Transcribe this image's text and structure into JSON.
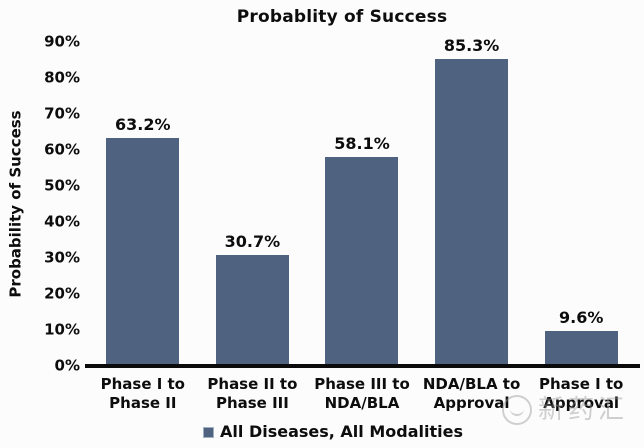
{
  "header": {
    "title": "Probablity of Success"
  },
  "chart_data": {
    "type": "bar",
    "title": "Probablity of Success",
    "xlabel": "",
    "ylabel": "Probability of Success",
    "categories": [
      "Phase I to\nPhase II",
      "Phase II to\nPhase III",
      "Phase III to\nNDA/BLA",
      "NDA/BLA to\nApproval",
      "Phase I to\nApproval"
    ],
    "values": [
      63.2,
      30.7,
      58.1,
      85.3,
      9.6
    ],
    "value_labels": [
      "63.2%",
      "30.7%",
      "58.1%",
      "85.3%",
      "9.6%"
    ],
    "ylim": [
      0,
      90
    ],
    "yticks": [
      "0%",
      "10%",
      "20%",
      "30%",
      "40%",
      "50%",
      "60%",
      "70%",
      "80%",
      "90%"
    ],
    "grid": false,
    "legend_position": "bottom",
    "legend_entries": [
      "All Diseases, All Modalities"
    ],
    "bar_color": "#4F6380"
  },
  "legend": {
    "label": "All Diseases, All Modalities"
  },
  "watermark": {
    "text": "新药汇"
  },
  "colors": {
    "bar": "#4F6380",
    "axis": "#0B0B0B",
    "text": "#0D0D0D",
    "background": "#FCFCFC",
    "watermark": "#9A9A9A"
  }
}
